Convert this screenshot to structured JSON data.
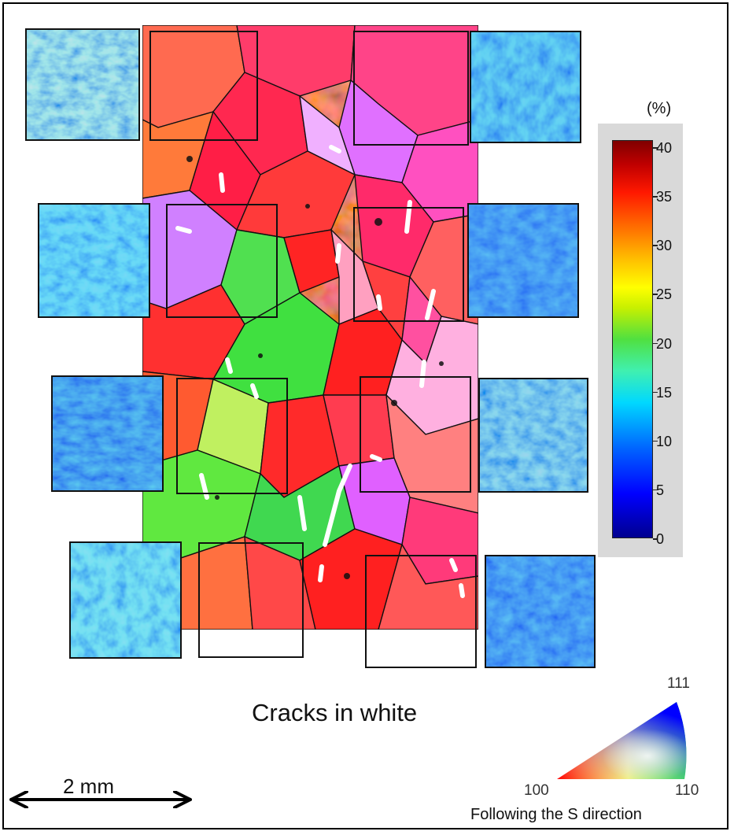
{
  "colorbar": {
    "unit": "(%)",
    "ticks": [
      "40",
      "35",
      "30",
      "25",
      "20",
      "15",
      "10",
      "5",
      "0"
    ],
    "min": 0,
    "max": 40
  },
  "caption": "Cracks in white",
  "scale_bar": {
    "label": "2 mm"
  },
  "ipf_legend": {
    "corner_top": "111",
    "corner_left": "100",
    "corner_right": "110",
    "caption": "Following the S direction"
  },
  "colors": {
    "crack": "#ffffff",
    "grain_boundary": "#111111",
    "strain_low": "#0018c8",
    "strain_high": "#ff2000"
  }
}
